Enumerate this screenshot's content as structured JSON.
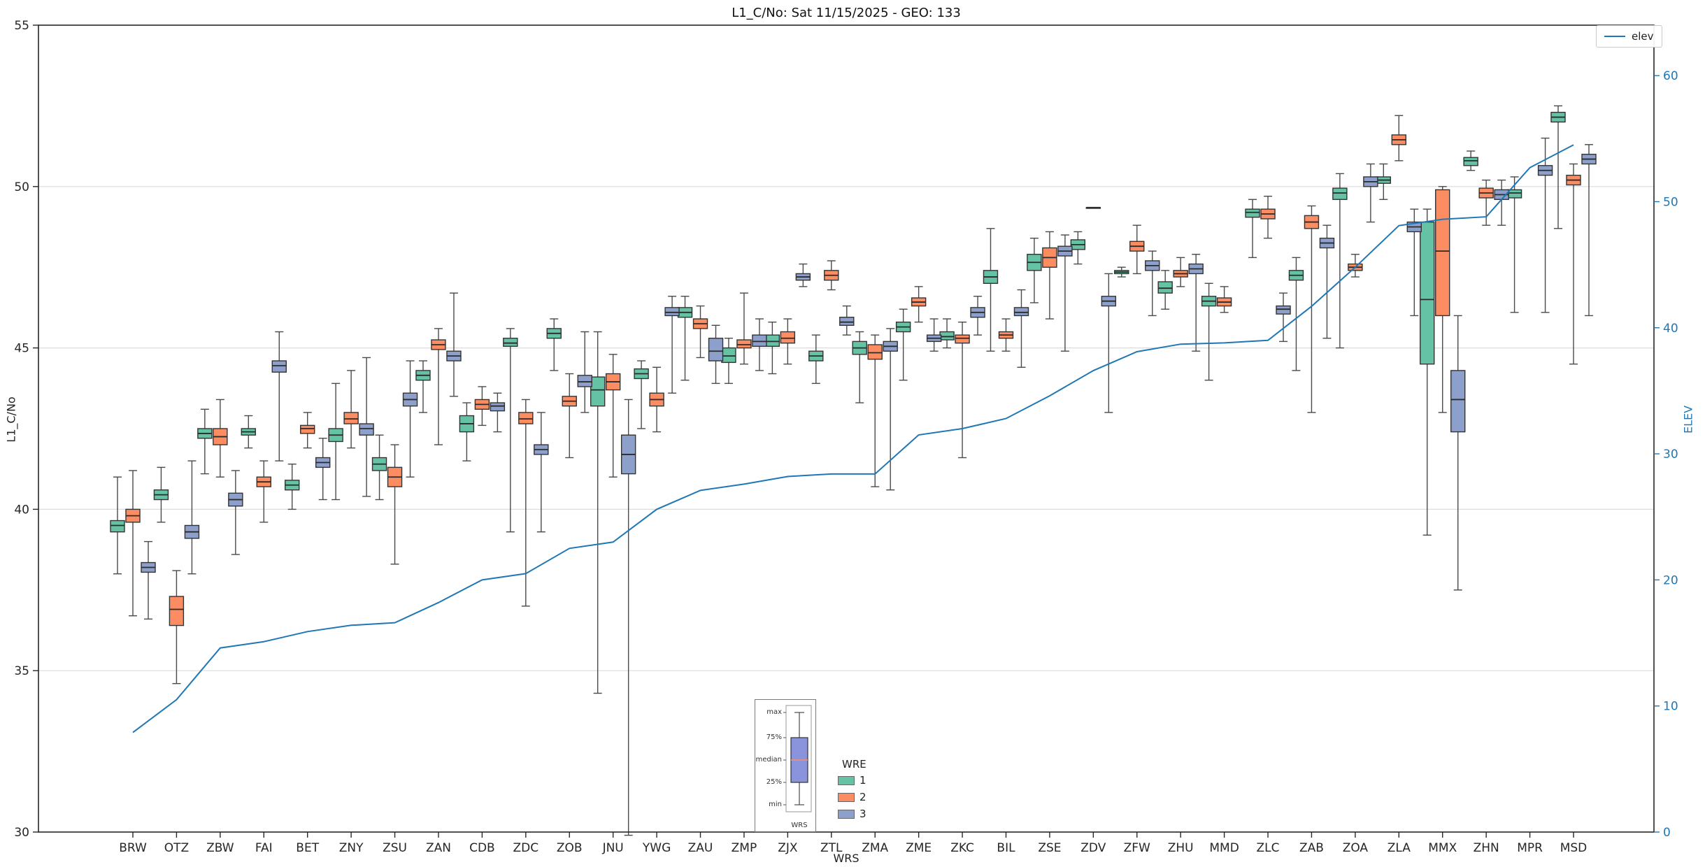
{
  "title": "L1_C/No: Sat 11/15/2025 - GEO: 133",
  "chart_data": {
    "type": "boxplot+line",
    "title": "L1_C/No: Sat 11/15/2025 - GEO: 133",
    "xlabel": "WRS",
    "ylabel": "L1_C/No",
    "y2label": "ELEV",
    "ylim": [
      30,
      55
    ],
    "y2lim": [
      0,
      64
    ],
    "yticks": [
      30,
      35,
      40,
      45,
      50,
      55
    ],
    "ygrid": [
      35,
      40,
      45,
      50
    ],
    "y2ticks": [
      0,
      10,
      20,
      30,
      40,
      50,
      60
    ],
    "grid": "horizontal",
    "categories": [
      "BRW",
      "OTZ",
      "ZBW",
      "FAI",
      "BET",
      "ZNY",
      "ZSU",
      "ZAN",
      "CDB",
      "ZDC",
      "ZOB",
      "JNU",
      "YWG",
      "ZAU",
      "ZMP",
      "ZJX",
      "ZTL",
      "ZMA",
      "ZME",
      "ZKC",
      "BIL",
      "ZSE",
      "ZDV",
      "ZFW",
      "ZHU",
      "MMD",
      "ZLC",
      "ZAB",
      "ZOA",
      "ZLA",
      "MMX",
      "ZHN",
      "MPR",
      "MSD"
    ],
    "box_stats_order": [
      "min",
      "q1",
      "median",
      "q3",
      "max"
    ],
    "series": [
      {
        "name": "1",
        "color": "#66c2a5",
        "boxes": [
          [
            38.0,
            39.3,
            39.5,
            39.65,
            41.0
          ],
          [
            39.6,
            40.3,
            40.45,
            40.6,
            41.3
          ],
          [
            41.1,
            42.2,
            42.35,
            42.5,
            43.1
          ],
          [
            41.9,
            42.3,
            42.4,
            42.5,
            42.9
          ],
          [
            40.0,
            40.6,
            40.75,
            40.9,
            41.4
          ],
          [
            40.3,
            42.1,
            42.3,
            42.5,
            43.9
          ],
          [
            40.3,
            41.2,
            41.4,
            41.6,
            42.3
          ],
          [
            43.0,
            44.0,
            44.15,
            44.3,
            44.6
          ],
          [
            41.5,
            42.4,
            42.65,
            42.9,
            43.3
          ],
          [
            39.3,
            45.05,
            45.15,
            45.3,
            45.6
          ],
          [
            44.3,
            45.3,
            45.45,
            45.6,
            45.9
          ],
          [
            34.3,
            43.2,
            43.7,
            44.1,
            45.5
          ],
          [
            42.5,
            44.05,
            44.2,
            44.35,
            44.6
          ],
          [
            44.0,
            45.95,
            46.1,
            46.25,
            46.6
          ],
          [
            43.9,
            44.55,
            44.75,
            45.0,
            45.3
          ],
          [
            44.2,
            45.05,
            45.2,
            45.4,
            45.8
          ],
          [
            43.9,
            44.6,
            44.75,
            44.9,
            45.4
          ],
          [
            43.3,
            44.8,
            45.0,
            45.2,
            45.5
          ],
          [
            44.0,
            45.5,
            45.65,
            45.8,
            46.2
          ],
          [
            45.0,
            45.25,
            45.35,
            45.5,
            45.9
          ],
          [
            44.9,
            47.0,
            47.2,
            47.4,
            48.7
          ],
          [
            46.4,
            47.4,
            47.65,
            47.9,
            48.4
          ],
          [
            47.6,
            48.05,
            48.2,
            48.35,
            48.6
          ],
          [
            47.2,
            47.3,
            47.35,
            47.4,
            47.5
          ],
          [
            46.2,
            46.7,
            46.85,
            47.05,
            47.4
          ],
          [
            44.0,
            46.3,
            46.45,
            46.6,
            47.0
          ],
          [
            47.8,
            49.05,
            49.2,
            49.3,
            49.6
          ],
          [
            44.3,
            47.1,
            47.25,
            47.4,
            47.8
          ],
          [
            45.0,
            49.6,
            49.8,
            49.95,
            50.4
          ],
          [
            49.6,
            50.1,
            50.2,
            50.3,
            50.7
          ],
          [
            39.2,
            44.5,
            46.5,
            48.9,
            49.3
          ],
          [
            50.5,
            50.65,
            50.8,
            50.9,
            51.1
          ],
          [
            46.1,
            49.65,
            49.8,
            49.9,
            50.3
          ],
          [
            48.7,
            52.0,
            52.15,
            52.3,
            52.5
          ]
        ]
      },
      {
        "name": "2",
        "color": "#fc8d62",
        "boxes": [
          [
            36.7,
            39.6,
            39.8,
            40.0,
            41.2
          ],
          [
            34.6,
            36.4,
            36.9,
            37.3,
            38.1
          ],
          [
            41.0,
            42.0,
            42.25,
            42.5,
            43.4
          ],
          [
            39.6,
            40.7,
            40.85,
            41.0,
            41.5
          ],
          [
            41.9,
            42.35,
            42.5,
            42.6,
            43.0
          ],
          [
            41.9,
            42.65,
            42.8,
            43.0,
            44.3
          ],
          [
            38.3,
            40.7,
            41.0,
            41.3,
            42.0
          ],
          [
            42.0,
            44.95,
            45.1,
            45.25,
            45.6
          ],
          [
            42.6,
            43.1,
            43.25,
            43.4,
            43.8
          ],
          [
            37.0,
            42.65,
            42.8,
            43.0,
            43.4
          ],
          [
            41.6,
            43.2,
            43.35,
            43.5,
            44.2
          ],
          [
            41.0,
            43.7,
            43.95,
            44.2,
            44.8
          ],
          [
            42.4,
            43.2,
            43.4,
            43.6,
            44.4
          ],
          [
            44.7,
            45.6,
            45.75,
            45.9,
            46.3
          ],
          [
            44.5,
            45.0,
            45.1,
            45.25,
            46.7
          ],
          [
            44.5,
            45.15,
            45.3,
            45.5,
            45.9
          ],
          [
            46.8,
            47.1,
            47.25,
            47.4,
            47.7
          ],
          [
            40.7,
            44.65,
            44.85,
            45.1,
            45.4
          ],
          [
            45.8,
            46.3,
            46.42,
            46.55,
            46.9
          ],
          [
            41.6,
            45.15,
            45.3,
            45.4,
            45.8
          ],
          [
            44.9,
            45.3,
            45.4,
            45.5,
            45.9
          ],
          [
            45.9,
            47.5,
            47.8,
            48.1,
            48.6
          ],
          [
            49.35,
            49.35,
            49.35,
            49.35,
            49.35
          ],
          [
            47.3,
            48.0,
            48.15,
            48.3,
            48.8
          ],
          [
            46.9,
            47.2,
            47.3,
            47.4,
            47.8
          ],
          [
            46.1,
            46.3,
            46.42,
            46.55,
            46.9
          ],
          [
            48.4,
            49.0,
            49.15,
            49.3,
            49.7
          ],
          [
            43.0,
            48.7,
            48.9,
            49.1,
            49.4
          ],
          [
            47.2,
            47.4,
            47.5,
            47.6,
            47.9
          ],
          [
            50.8,
            51.3,
            51.45,
            51.6,
            52.2
          ],
          [
            43.0,
            46.0,
            48.0,
            49.9,
            50.0
          ],
          [
            48.8,
            49.65,
            49.8,
            49.95,
            50.2
          ],
          null,
          [
            44.5,
            50.05,
            50.2,
            50.35,
            50.7
          ]
        ]
      },
      {
        "name": "3",
        "color": "#8da0cb",
        "boxes": [
          [
            36.6,
            38.05,
            38.2,
            38.35,
            39.0
          ],
          [
            38.0,
            39.1,
            39.3,
            39.5,
            41.5
          ],
          [
            38.6,
            40.1,
            40.3,
            40.5,
            41.2
          ],
          [
            41.5,
            44.25,
            44.45,
            44.6,
            45.5
          ],
          [
            40.3,
            41.3,
            41.45,
            41.6,
            42.2
          ],
          [
            40.4,
            42.3,
            42.5,
            42.65,
            44.7
          ],
          [
            41.0,
            43.2,
            43.4,
            43.6,
            44.6
          ],
          [
            43.5,
            44.6,
            44.75,
            44.9,
            46.7
          ],
          [
            42.4,
            43.05,
            43.2,
            43.3,
            43.6
          ],
          [
            39.3,
            41.7,
            41.85,
            42.0,
            43.0
          ],
          [
            43.0,
            43.8,
            43.95,
            44.15,
            45.5
          ],
          [
            29.9,
            41.1,
            41.7,
            42.3,
            43.4
          ],
          [
            43.6,
            46.0,
            46.1,
            46.25,
            46.6
          ],
          [
            43.9,
            44.6,
            44.9,
            45.3,
            45.7
          ],
          [
            44.3,
            45.05,
            45.2,
            45.4,
            45.9
          ],
          [
            46.9,
            47.1,
            47.2,
            47.3,
            47.6
          ],
          [
            45.4,
            45.7,
            45.8,
            45.95,
            46.3
          ],
          [
            40.6,
            44.9,
            45.05,
            45.2,
            45.6
          ],
          [
            44.9,
            45.2,
            45.3,
            45.4,
            45.9
          ],
          [
            45.4,
            45.95,
            46.1,
            46.25,
            46.6
          ],
          [
            44.4,
            46.0,
            46.1,
            46.25,
            46.8
          ],
          [
            44.9,
            47.85,
            48.0,
            48.15,
            48.5
          ],
          [
            43.0,
            46.3,
            46.45,
            46.6,
            47.3
          ],
          [
            46.0,
            47.4,
            47.55,
            47.7,
            48.0
          ],
          [
            44.9,
            47.3,
            47.45,
            47.6,
            47.9
          ],
          null,
          [
            45.2,
            46.05,
            46.2,
            46.3,
            46.7
          ],
          [
            45.3,
            48.1,
            48.25,
            48.4,
            48.8
          ],
          [
            48.9,
            50.0,
            50.15,
            50.3,
            50.7
          ],
          [
            46.0,
            48.6,
            48.75,
            48.9,
            49.3
          ],
          [
            37.5,
            42.4,
            43.4,
            44.3,
            46.0
          ],
          [
            48.8,
            49.6,
            49.75,
            49.9,
            50.2
          ],
          [
            46.1,
            50.35,
            50.5,
            50.65,
            51.5
          ],
          [
            46.0,
            50.7,
            50.85,
            51.0,
            51.3
          ]
        ]
      }
    ],
    "line": {
      "name": "elev",
      "color": "#1f77b4",
      "axis": "right",
      "values": [
        7.9,
        10.5,
        14.6,
        15.1,
        15.9,
        16.4,
        16.6,
        18.2,
        20.0,
        20.5,
        22.5,
        23.0,
        25.6,
        27.1,
        27.6,
        28.2,
        28.4,
        28.4,
        31.5,
        32.0,
        32.8,
        34.6,
        36.6,
        38.1,
        38.7,
        38.8,
        39.0,
        41.7,
        44.8,
        48.1,
        48.6,
        48.8,
        52.7,
        54.5
      ]
    },
    "legend_line": {
      "label": "elev"
    },
    "legend_wre": {
      "title": "WRE",
      "items": [
        {
          "label": "1",
          "color": "#66c2a5"
        },
        {
          "label": "2",
          "color": "#fc8d62"
        },
        {
          "label": "3",
          "color": "#8da0cb"
        }
      ]
    },
    "explainer": {
      "labels": [
        "max",
        "75%",
        "median",
        "25%",
        "min"
      ],
      "xlabel": "WRS",
      "box_color": "#8a94dd",
      "median_color": "#fc8d62"
    },
    "style": {
      "grid_color": "#dcdcdc",
      "spine_color": "#262626",
      "tick_label_color": "#262626",
      "whisker_color": "#4a4a4a",
      "box_edge_color": "#333333"
    }
  }
}
